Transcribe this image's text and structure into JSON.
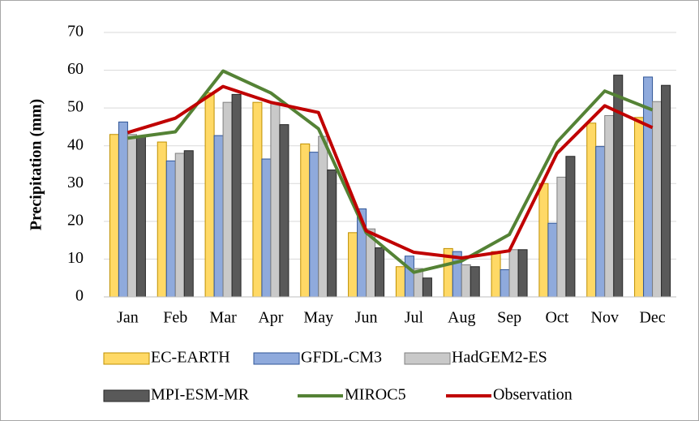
{
  "chart_data": {
    "type": "bar",
    "y_label": "Precipitation (mm)",
    "categories": [
      "Jan",
      "Feb",
      "Mar",
      "Apr",
      "May",
      "Jun",
      "Jul",
      "Aug",
      "Sep",
      "Oct",
      "Nov",
      "Dec"
    ],
    "ylim": [
      0,
      70
    ],
    "yticks": [
      0,
      10,
      20,
      30,
      40,
      50,
      60,
      70
    ],
    "grid": true,
    "series": [
      {
        "name": "EC-EARTH",
        "type": "bar",
        "color": "#ffd966",
        "values": [
          43,
          41,
          54,
          51.5,
          40.5,
          17,
          8,
          12.8,
          12,
          30,
          46,
          47.5
        ]
      },
      {
        "name": "GFDL-CM3",
        "type": "bar",
        "color": "#8faadc",
        "values": [
          46.3,
          36,
          42.7,
          36.5,
          38.3,
          23.3,
          10.8,
          12,
          7.2,
          19.5,
          39.8,
          58.2
        ]
      },
      {
        "name": "HadGEM2-ES",
        "type": "bar",
        "color": "#c9c9c9",
        "values": [
          43,
          38,
          51.5,
          51.5,
          42.5,
          18,
          7.5,
          8.5,
          12.5,
          31.7,
          48,
          51.7
        ]
      },
      {
        "name": "MPI-ESM-MR",
        "type": "bar",
        "color": "#595959",
        "values": [
          42.5,
          38.7,
          53.6,
          45.6,
          33.6,
          13,
          5,
          8,
          12.5,
          37.2,
          58.7,
          56
        ]
      },
      {
        "name": "MIROC5",
        "type": "line",
        "color": "#548235",
        "values": [
          42,
          43.7,
          59.8,
          54,
          44.5,
          17,
          6.5,
          9.5,
          16.5,
          41,
          54.5,
          49.5
        ]
      },
      {
        "name": "Observation",
        "type": "line",
        "color": "#c00000",
        "values": [
          43.5,
          47.3,
          55.7,
          51.5,
          48.8,
          17.5,
          11.8,
          10.3,
          12.2,
          38,
          50.6,
          44.8
        ]
      }
    ]
  }
}
